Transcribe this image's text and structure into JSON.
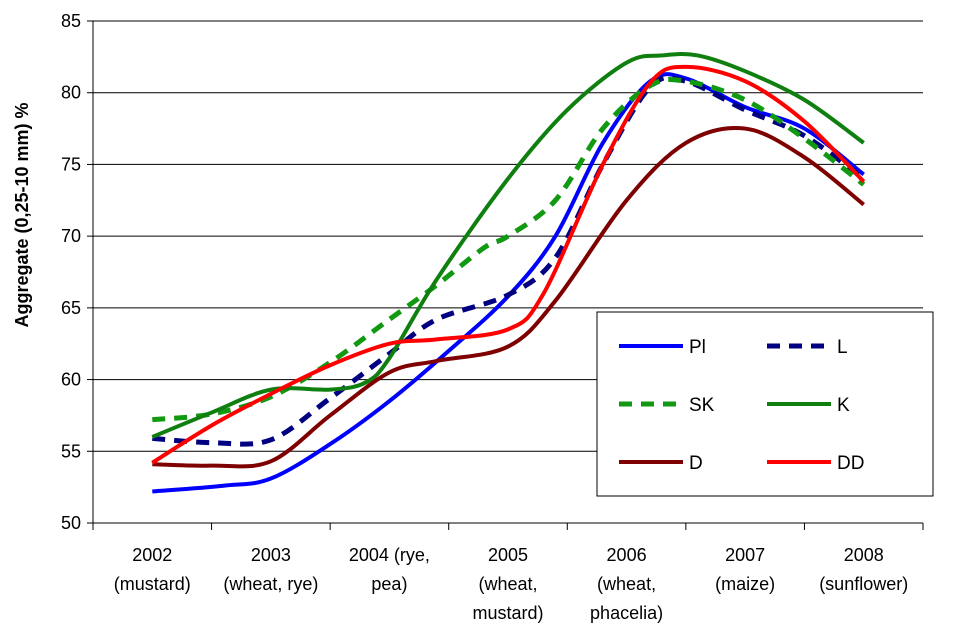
{
  "chart_data": {
    "type": "line",
    "ylabel": "Aggregate (0,25-10 mm) %",
    "xlabel": "",
    "ylim": [
      50,
      85
    ],
    "yticks": [
      "50",
      "55",
      "60",
      "65",
      "70",
      "75",
      "80",
      "85"
    ],
    "categories": [
      [
        "2002",
        "(mustard)"
      ],
      [
        "2003",
        "(wheat, rye)"
      ],
      [
        "2004 (rye,",
        "pea)"
      ],
      [
        "2005",
        "(wheat,",
        "mustard)"
      ],
      [
        "2006",
        "(wheat,",
        "phacelia)"
      ],
      [
        "2007",
        "(maize)"
      ],
      [
        "2008",
        "(sunflower)"
      ]
    ],
    "grid": "horizontal",
    "legend_position": "bottom-right",
    "series": [
      {
        "name": "Pl",
        "color": "#0000ff",
        "style": "solid",
        "values": [
          [
            0,
            52.2
          ],
          [
            0.6,
            52.6
          ],
          [
            1,
            53.1
          ],
          [
            1.5,
            55.5
          ],
          [
            2,
            58.5
          ],
          [
            2.5,
            62.0
          ],
          [
            3,
            65.8
          ],
          [
            3.4,
            70.0
          ],
          [
            3.8,
            76.5
          ],
          [
            4.2,
            80.8
          ],
          [
            4.5,
            81.0
          ],
          [
            5,
            79.0
          ],
          [
            5.5,
            77.5
          ],
          [
            6,
            74.3
          ]
        ]
      },
      {
        "name": "L",
        "color": "#000080",
        "style": "dashed",
        "values": [
          [
            0,
            55.9
          ],
          [
            0.5,
            55.6
          ],
          [
            1,
            55.8
          ],
          [
            1.5,
            58.7
          ],
          [
            2,
            61.8
          ],
          [
            2.4,
            64.2
          ],
          [
            3,
            65.9
          ],
          [
            3.4,
            68.5
          ],
          [
            3.8,
            75.0
          ],
          [
            4.2,
            80.4
          ],
          [
            4.5,
            80.8
          ],
          [
            5,
            78.8
          ],
          [
            5.5,
            77.0
          ],
          [
            6,
            74.0
          ]
        ]
      },
      {
        "name": "SK",
        "color": "#119911",
        "style": "dashed",
        "values": [
          [
            0,
            57.2
          ],
          [
            0.5,
            57.6
          ],
          [
            1,
            58.8
          ],
          [
            1.5,
            61.2
          ],
          [
            2,
            64.2
          ],
          [
            2.4,
            66.6
          ],
          [
            2.8,
            69.2
          ],
          [
            3,
            70.0
          ],
          [
            3.4,
            72.5
          ],
          [
            3.8,
            77.5
          ],
          [
            4.2,
            80.5
          ],
          [
            4.5,
            80.8
          ],
          [
            5,
            79.5
          ],
          [
            5.5,
            76.8
          ],
          [
            6,
            73.6
          ]
        ]
      },
      {
        "name": "K",
        "color": "#0f7f0f",
        "style": "solid",
        "values": [
          [
            0,
            56.0
          ],
          [
            0.5,
            57.7
          ],
          [
            1,
            59.3
          ],
          [
            1.5,
            59.3
          ],
          [
            1.8,
            59.8
          ],
          [
            2,
            61.5
          ],
          [
            2.4,
            67.0
          ],
          [
            3,
            74.0
          ],
          [
            3.5,
            78.8
          ],
          [
            4,
            82.1
          ],
          [
            4.3,
            82.6
          ],
          [
            4.6,
            82.6
          ],
          [
            5,
            81.5
          ],
          [
            5.5,
            79.5
          ],
          [
            6,
            76.5
          ]
        ]
      },
      {
        "name": "D",
        "color": "#7f0000",
        "style": "solid",
        "values": [
          [
            0,
            54.1
          ],
          [
            0.5,
            54.0
          ],
          [
            1,
            54.3
          ],
          [
            1.5,
            57.5
          ],
          [
            2,
            60.5
          ],
          [
            2.4,
            61.3
          ],
          [
            3,
            62.3
          ],
          [
            3.4,
            65.5
          ],
          [
            4,
            72.5
          ],
          [
            4.5,
            76.5
          ],
          [
            5,
            77.5
          ],
          [
            5.5,
            75.5
          ],
          [
            6,
            72.2
          ]
        ]
      },
      {
        "name": "DD",
        "color": "#ff0000",
        "style": "solid",
        "values": [
          [
            0,
            54.2
          ],
          [
            0.5,
            56.8
          ],
          [
            1,
            59.0
          ],
          [
            1.5,
            61.0
          ],
          [
            2,
            62.5
          ],
          [
            2.4,
            62.8
          ],
          [
            3,
            63.5
          ],
          [
            3.3,
            66.0
          ],
          [
            3.8,
            75.0
          ],
          [
            4.2,
            80.7
          ],
          [
            4.5,
            81.8
          ],
          [
            5,
            80.8
          ],
          [
            5.5,
            78.0
          ],
          [
            6,
            73.8
          ]
        ]
      }
    ]
  }
}
